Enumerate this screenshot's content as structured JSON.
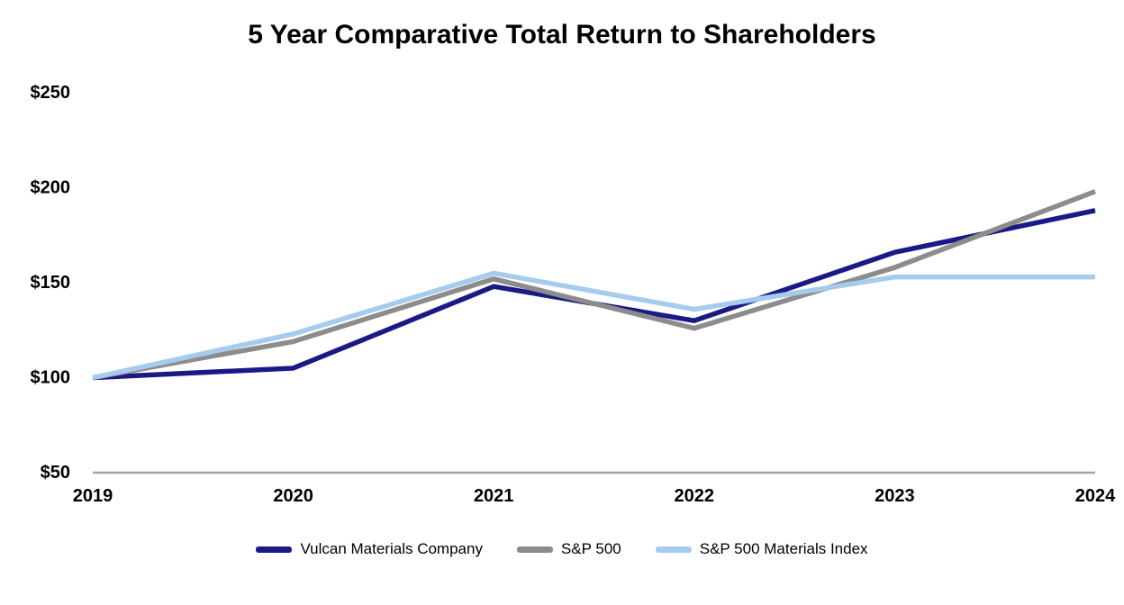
{
  "chart_data": {
    "type": "line",
    "title": "5 Year Comparative Total Return to Shareholders",
    "x_labels": [
      "2019",
      "2020",
      "2021",
      "2022",
      "2023",
      "2024"
    ],
    "y_ticks": [
      {
        "label": "$250",
        "value": 250
      },
      {
        "label": "$200",
        "value": 200
      },
      {
        "label": "$150",
        "value": 150
      },
      {
        "label": "$100",
        "value": 100
      },
      {
        "label": "$50",
        "value": 50
      }
    ],
    "ylim": [
      50,
      250
    ],
    "grid": false,
    "legend_position": "bottom",
    "axis_line_color": "#A6A6A6",
    "series": [
      {
        "name": "Vulcan Materials Company",
        "color": "#1A1A87",
        "values": [
          100,
          105,
          148,
          130,
          166,
          188
        ]
      },
      {
        "name": "S&P 500",
        "color": "#8E8C8A",
        "values": [
          100,
          119,
          152,
          126,
          158,
          198
        ]
      },
      {
        "name": "S&P 500 Materials Index",
        "color": "#A6CBEF",
        "values": [
          100,
          123,
          155,
          136,
          153,
          153
        ]
      }
    ]
  }
}
